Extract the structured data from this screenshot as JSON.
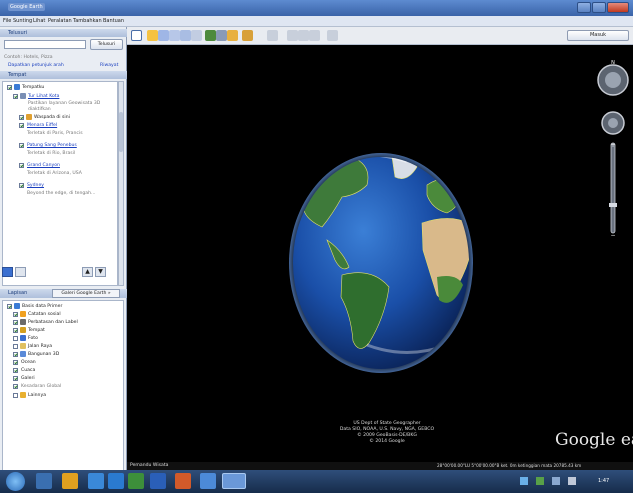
{
  "window": {
    "title": "Google Earth"
  },
  "menu": [
    "File",
    "Sunting",
    "Lihat",
    "Peralatan",
    "Tambahkan",
    "Bantuan"
  ],
  "toolbar": {
    "signin_label": "Masuk"
  },
  "search": {
    "header": "Telusuri",
    "button": "Telusuri",
    "links": "Contoh: Hotels, Pizza",
    "links2": "Dapatkan petunjuk arah",
    "links3": "Riwayat"
  },
  "places": {
    "header": "Tempat",
    "items": [
      {
        "label": "Tempatku",
        "type": "plain"
      },
      {
        "label": "Tur Lihat Kota",
        "type": "link"
      },
      {
        "label": "Pastikan layanan Geowisata 3D diaktifkan",
        "type": "sub"
      },
      {
        "label": "Waspada di sini",
        "type": "plain"
      },
      {
        "label": "Menara Eiffel",
        "type": "link"
      },
      {
        "label": "Terletak di Paris, Prancis",
        "type": "sub"
      },
      {
        "label": "Patung Sang Penebus",
        "type": "link"
      },
      {
        "label": "Terletak di Rio, Brasil",
        "type": "sub"
      },
      {
        "label": "Grand Canyon",
        "type": "link"
      },
      {
        "label": "Terletak di Arizona, USA",
        "type": "sub"
      },
      {
        "label": "Sydney",
        "type": "link"
      },
      {
        "label": "Beyond the edge, di tengah...",
        "type": "sub"
      }
    ]
  },
  "layers": {
    "header": "Lapisan",
    "tab": "Galeri Google Earth »",
    "items": [
      {
        "label": "Basis data Primer",
        "checked": true,
        "color": "#3a7bd5"
      },
      {
        "label": "Catatan sosial",
        "checked": true,
        "color": "#f0a020"
      },
      {
        "label": "Perbatasan dan Label",
        "checked": true,
        "color": "#6a6a6a"
      },
      {
        "label": "Tempat",
        "checked": true,
        "color": "#d4a020"
      },
      {
        "label": "Foto",
        "checked": false,
        "color": "#3a6fd0"
      },
      {
        "label": "Jalan Raya",
        "checked": false,
        "color": "#e0c060"
      },
      {
        "label": "Bangunan 3D",
        "checked": true,
        "color": "#5a8ad8"
      },
      {
        "label": "Ocean",
        "checked": true,
        "color": "#2a6bd0"
      },
      {
        "label": "Cuaca",
        "checked": true,
        "color": "#f0c020"
      },
      {
        "label": "Galeri",
        "checked": true,
        "color": "#c05030"
      },
      {
        "label": "Kesadaran Global",
        "checked": true,
        "color": "#40a040"
      },
      {
        "label": "Lainnya",
        "checked": false,
        "color": "#e8b030"
      }
    ]
  },
  "map": {
    "attribution": [
      "US Dept of State Geographer",
      "Data SIO, NOAA, U.S. Navy, NGA, GEBCO",
      "© 2009 GeoBasis-DE/BKG",
      "© 2014 Google"
    ],
    "logo": "Google earth",
    "tour_guide": "Pemandu Wisata",
    "status": "28°00'00.00\"LU 5°00'00.00\"B ket. 0m   ketinggian mata 20785.43 km"
  },
  "taskbar": {
    "clock": "1:47"
  }
}
